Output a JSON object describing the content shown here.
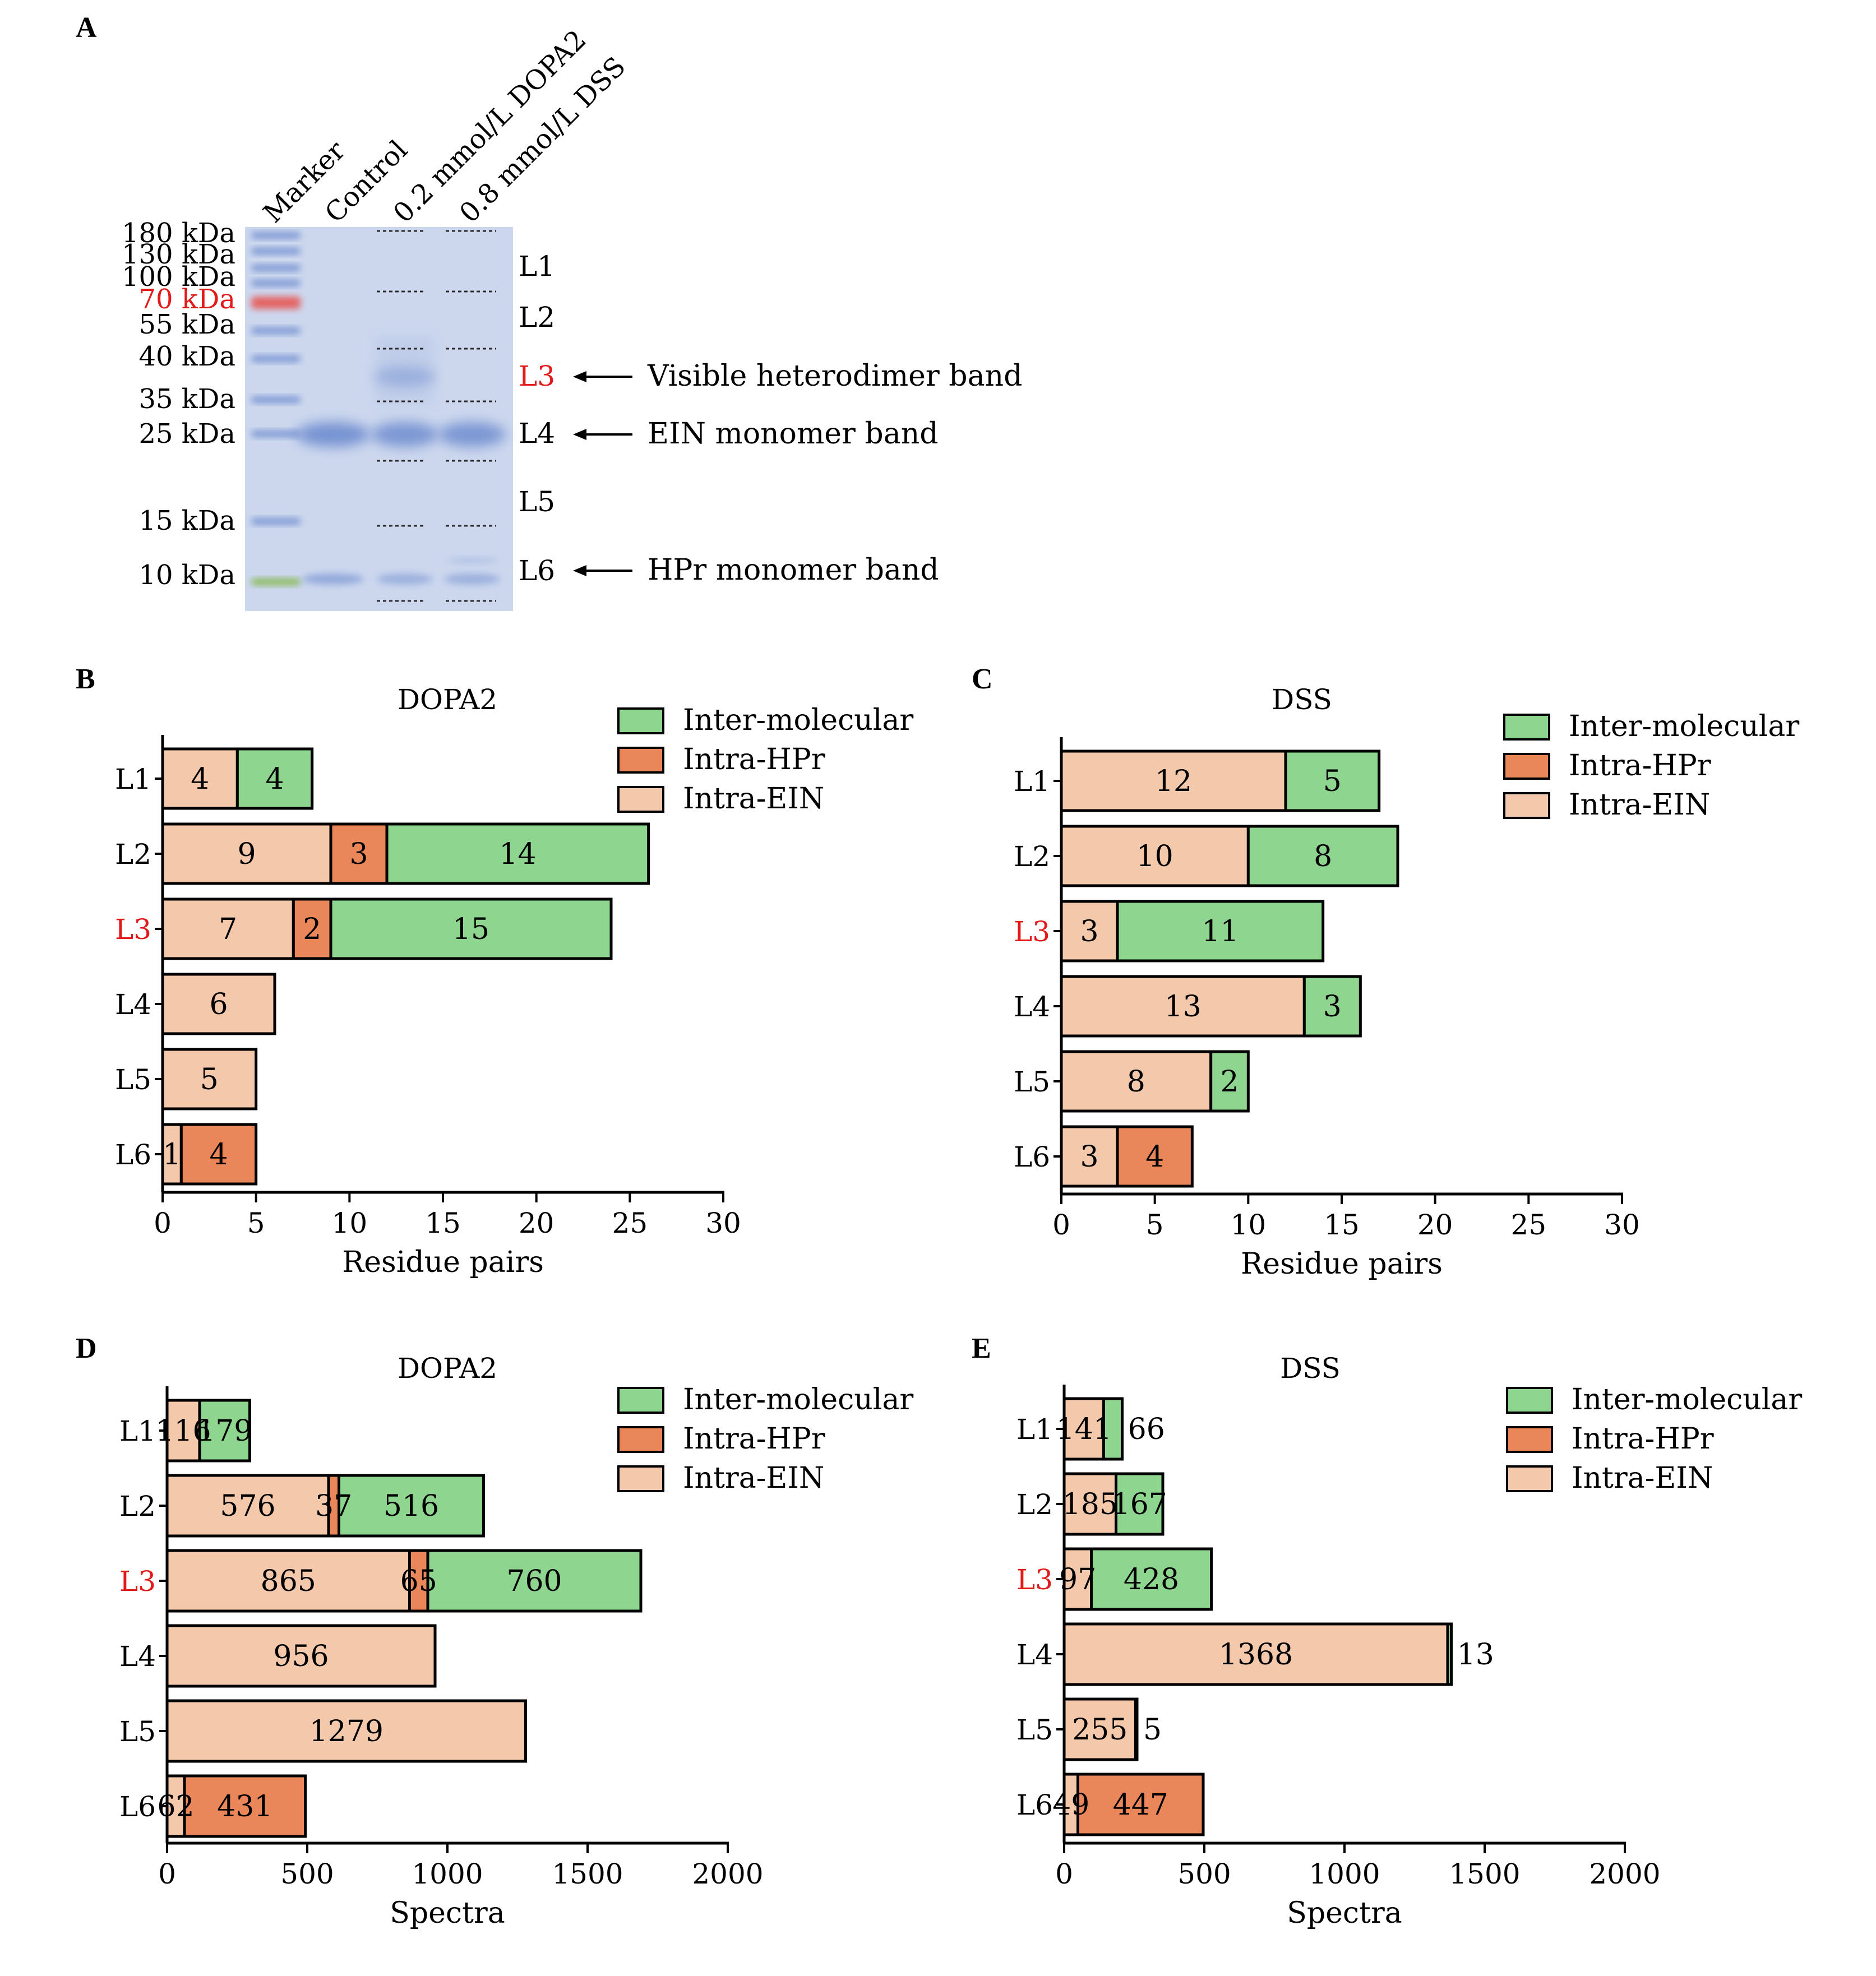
{
  "colors": {
    "intra_ein": "#F4C8AA",
    "intra_hpr": "#E9875A",
    "inter_molecular": "#8ED68F",
    "highlight": "#E21A1A",
    "gel_background": "#CCD7EE",
    "gel_band": "#6E8CCF",
    "marker_red": "#E8504A",
    "marker_green": "#7DB23A"
  },
  "panel_a": {
    "letter": "A",
    "lane_labels": [
      "Marker",
      "Control",
      "0.2 mmol/L DOPA2",
      "0.8 mmol/L DSS"
    ],
    "mw_labels": [
      "180 kDa",
      "130 kDa",
      "100 kDa",
      "70 kDa",
      "55 kDa",
      "40 kDa",
      "35 kDa",
      "25 kDa",
      "15 kDa",
      "10 kDa"
    ],
    "highlight_mw": "70 kDa",
    "slice_labels": [
      "L1",
      "L2",
      "L3",
      "L4",
      "L5",
      "L6"
    ],
    "highlight_slice": "L3",
    "annotations": [
      {
        "slice": "L3",
        "text": "Visible heterodimer band"
      },
      {
        "slice": "L4",
        "text": "EIN monomer band"
      },
      {
        "slice": "L6",
        "text": "HPr monomer band"
      }
    ]
  },
  "chart_data": [
    {
      "panel": "B",
      "type": "bar",
      "orientation": "horizontal",
      "stacked": true,
      "title": "DOPA2",
      "xlabel": "Residue pairs",
      "xlim": [
        0,
        30
      ],
      "xticks": [
        "0",
        "5",
        "10",
        "15",
        "20",
        "25",
        "30"
      ],
      "categories": [
        "L1",
        "L2",
        "L3",
        "L4",
        "L5",
        "L6"
      ],
      "highlight_category": "L3",
      "legend": [
        "Inter-molecular",
        "Intra-HPr",
        "Intra-EIN"
      ],
      "legend_position": "top-right",
      "series": [
        {
          "name": "Intra-EIN",
          "values": [
            4,
            9,
            7,
            6,
            5,
            1
          ]
        },
        {
          "name": "Intra-HPr",
          "values": [
            0,
            3,
            2,
            0,
            0,
            4
          ]
        },
        {
          "name": "Inter-molecular",
          "values": [
            4,
            14,
            15,
            0,
            0,
            0
          ]
        }
      ]
    },
    {
      "panel": "C",
      "type": "bar",
      "orientation": "horizontal",
      "stacked": true,
      "title": "DSS",
      "xlabel": "Residue pairs",
      "xlim": [
        0,
        30
      ],
      "xticks": [
        "0",
        "5",
        "10",
        "15",
        "20",
        "25",
        "30"
      ],
      "categories": [
        "L1",
        "L2",
        "L3",
        "L4",
        "L5",
        "L6"
      ],
      "highlight_category": "L3",
      "legend": [
        "Inter-molecular",
        "Intra-HPr",
        "Intra-EIN"
      ],
      "legend_position": "top-right",
      "series": [
        {
          "name": "Intra-EIN",
          "values": [
            12,
            10,
            3,
            13,
            8,
            3
          ]
        },
        {
          "name": "Intra-HPr",
          "values": [
            0,
            0,
            0,
            0,
            0,
            4
          ]
        },
        {
          "name": "Inter-molecular",
          "values": [
            5,
            8,
            11,
            3,
            2,
            0
          ]
        }
      ]
    },
    {
      "panel": "D",
      "type": "bar",
      "orientation": "horizontal",
      "stacked": true,
      "title": "DOPA2",
      "xlabel": "Spectra",
      "xlim": [
        0,
        2000
      ],
      "xticks": [
        "0",
        "500",
        "1000",
        "1500",
        "2000"
      ],
      "categories": [
        "L1",
        "L2",
        "L3",
        "L4",
        "L5",
        "L6"
      ],
      "highlight_category": "L3",
      "legend": [
        "Inter-molecular",
        "Intra-HPr",
        "Intra-EIN"
      ],
      "legend_position": "top-right",
      "series": [
        {
          "name": "Intra-EIN",
          "values": [
            116,
            576,
            865,
            956,
            1279,
            62
          ]
        },
        {
          "name": "Intra-HPr",
          "values": [
            0,
            37,
            65,
            0,
            0,
            431
          ]
        },
        {
          "name": "Inter-molecular",
          "values": [
            179,
            516,
            760,
            0,
            0,
            0
          ]
        }
      ]
    },
    {
      "panel": "E",
      "type": "bar",
      "orientation": "horizontal",
      "stacked": true,
      "title": "DSS",
      "xlabel": "Spectra",
      "xlim": [
        0,
        2000
      ],
      "xticks": [
        "0",
        "500",
        "1000",
        "1500",
        "2000"
      ],
      "categories": [
        "L1",
        "L2",
        "L3",
        "L4",
        "L5",
        "L6"
      ],
      "highlight_category": "L3",
      "legend": [
        "Inter-molecular",
        "Intra-HPr",
        "Intra-EIN"
      ],
      "legend_position": "top-right",
      "series": [
        {
          "name": "Intra-EIN",
          "values": [
            141,
            185,
            97,
            1368,
            255,
            49
          ]
        },
        {
          "name": "Intra-HPr",
          "values": [
            0,
            0,
            0,
            0,
            0,
            447
          ]
        },
        {
          "name": "Inter-molecular",
          "values": [
            66,
            167,
            428,
            13,
            5,
            0
          ]
        }
      ]
    }
  ]
}
